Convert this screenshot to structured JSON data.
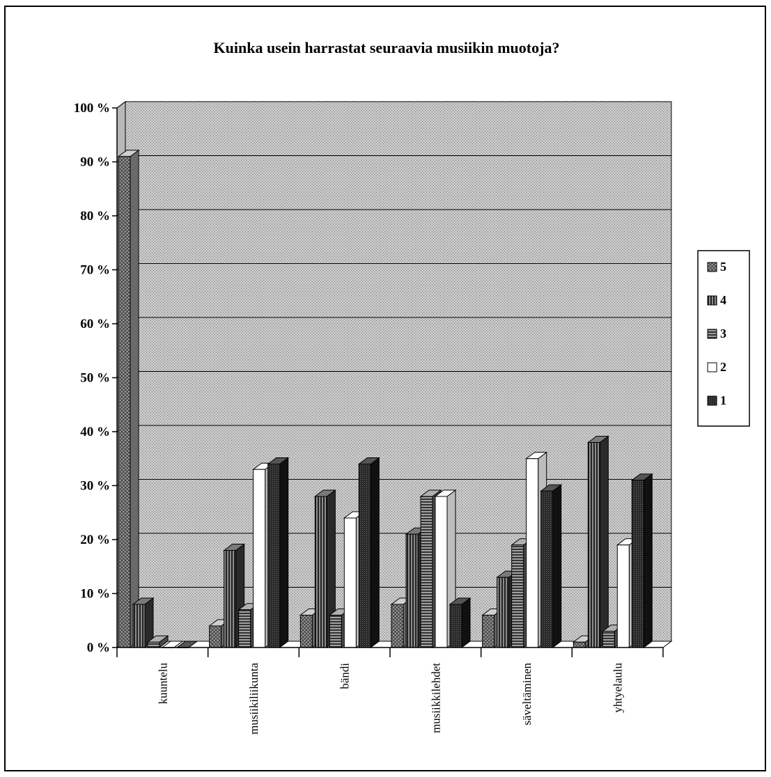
{
  "chart_data": {
    "type": "bar",
    "title": "Kuinka usein harrastat seuraavia musiikin muotoja?",
    "xlabel": "",
    "ylabel": "",
    "ylim": [
      0,
      100
    ],
    "y_ticks": [
      "0 %",
      "10 %",
      "20 %",
      "30 %",
      "40 %",
      "50 %",
      "60 %",
      "70 %",
      "80 %",
      "90 %",
      "100 %"
    ],
    "categories": [
      "kuuntelu",
      "musiikiliikunta",
      "bändi",
      "musiikkilehdet",
      "säveltäminen",
      "yhtyelaulu"
    ],
    "series": [
      {
        "name": "5",
        "values": [
          91,
          4,
          6,
          8,
          6,
          1
        ],
        "color": "#8a8a8a",
        "pattern": "crosshatch"
      },
      {
        "name": "4",
        "values": [
          8,
          18,
          28,
          21,
          13,
          38
        ],
        "color": "#4a4a4a",
        "pattern": "vertical"
      },
      {
        "name": "3",
        "values": [
          1,
          7,
          6,
          28,
          19,
          3
        ],
        "color": "#6e6e6e",
        "pattern": "horizontal"
      },
      {
        "name": "2",
        "values": [
          0,
          33,
          24,
          28,
          35,
          19
        ],
        "color": "#ffffff",
        "pattern": "none"
      },
      {
        "name": "1",
        "values": [
          0,
          34,
          34,
          8,
          29,
          31
        ],
        "color": "#1e1e1e",
        "pattern": "dark"
      }
    ],
    "legend": {
      "placement": "right"
    },
    "grid": true
  }
}
